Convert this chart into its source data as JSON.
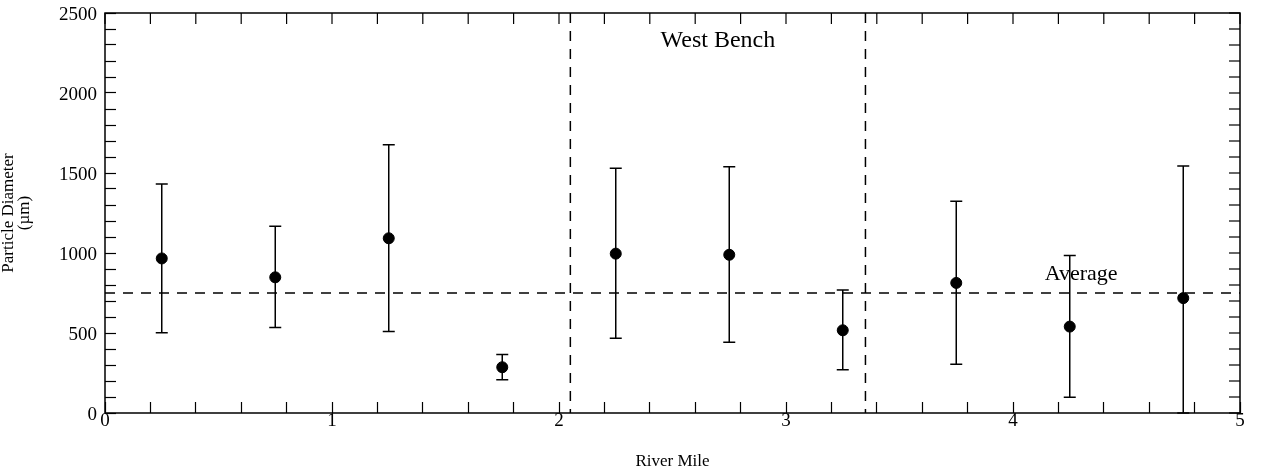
{
  "chart_data": {
    "type": "scatter",
    "xlabel": "River Mile",
    "ylabel": "Particle Diameter\n(µm)",
    "x": [
      0.25,
      0.75,
      1.25,
      1.75,
      2.25,
      2.75,
      3.25,
      3.75,
      4.25,
      4.75
    ],
    "values": [
      966,
      848,
      1092,
      286,
      996,
      989,
      517,
      813,
      540,
      718
    ],
    "errors": [
      [
        502,
        1431
      ],
      [
        535,
        1167
      ],
      [
        510,
        1677
      ],
      [
        208,
        366
      ],
      [
        467,
        1529
      ],
      [
        442,
        1539
      ],
      [
        271,
        768
      ],
      [
        304,
        1323
      ],
      [
        98,
        984
      ],
      [
        0,
        1544
      ]
    ],
    "color": "#000000",
    "marker": "circle",
    "xlim": [
      0,
      5
    ],
    "xticks": [
      0,
      {
        "value": 0.2,
        "label": null
      },
      {
        "value": 0.4,
        "label": null
      },
      {
        "value": 0.6,
        "label": null
      },
      {
        "value": 0.8,
        "label": null
      },
      1,
      {
        "value": 1.2,
        "label": null
      },
      {
        "value": 1.4,
        "label": null
      },
      {
        "value": 1.6,
        "label": null
      },
      {
        "value": 1.8,
        "label": null
      },
      2,
      {
        "value": 2.2,
        "label": null
      },
      {
        "value": 2.4,
        "label": null
      },
      {
        "value": 2.6,
        "label": null
      },
      {
        "value": 2.8,
        "label": null
      },
      3,
      {
        "value": 3.2,
        "label": null
      },
      {
        "value": 3.4,
        "label": null
      },
      {
        "value": 3.6,
        "label": null
      },
      {
        "value": 3.8,
        "label": null
      },
      4,
      {
        "value": 4.2,
        "label": null
      },
      {
        "value": 4.4,
        "label": null
      },
      {
        "value": 4.6,
        "label": null
      },
      {
        "value": 4.8,
        "label": null
      },
      5
    ],
    "ylim": [
      0,
      2500
    ],
    "yticks": [
      0,
      {
        "value": 100,
        "label": null
      },
      {
        "value": 200,
        "label": null
      },
      {
        "value": 300,
        "label": null
      },
      {
        "value": 400,
        "label": null
      },
      500,
      {
        "value": 600,
        "label": null
      },
      {
        "value": 700,
        "label": null
      },
      {
        "value": 800,
        "label": null
      },
      {
        "value": 900,
        "label": null
      },
      1000,
      {
        "value": 1100,
        "label": null
      },
      {
        "value": 1200,
        "label": null
      },
      {
        "value": 1300,
        "label": null
      },
      {
        "value": 1400,
        "label": null
      },
      1500,
      {
        "value": 1600,
        "label": null
      },
      {
        "value": 1700,
        "label": null
      },
      {
        "value": 1800,
        "label": null
      },
      {
        "value": 1900,
        "label": null
      },
      2000,
      {
        "value": 2100,
        "label": null
      },
      {
        "value": 2200,
        "label": null
      },
      {
        "value": 2300,
        "label": null
      },
      {
        "value": 2400,
        "label": null
      },
      2500
    ],
    "ref_lines": [
      {
        "axis": "y",
        "value": 750,
        "label": "Average",
        "line_style": "dashed"
      },
      {
        "axis": "x",
        "value": 2.05,
        "label": null,
        "line_style": "dashed"
      },
      {
        "axis": "x",
        "value": 3.35,
        "label": null,
        "line_style": "dashed"
      }
    ],
    "annotations": [
      "West Bench"
    ],
    "legend": false,
    "grid": false
  }
}
